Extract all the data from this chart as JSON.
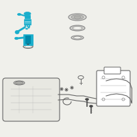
{
  "bg_color": "#f0f0eb",
  "highlight_color": "#1aaecc",
  "line_color": "#666666",
  "dark_color": "#444444",
  "light_gray": "#aaaaaa",
  "mid_gray": "#888888",
  "white": "#ffffff",
  "tank_fill": "#e8e8e2",
  "figsize": [
    2.0,
    2.0
  ],
  "dpi": 100
}
